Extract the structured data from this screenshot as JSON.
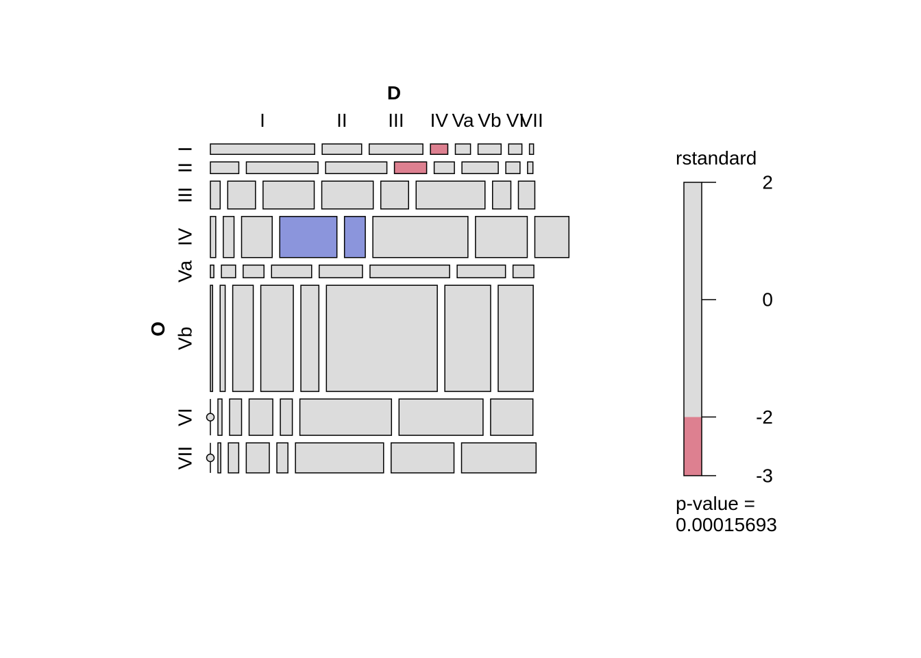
{
  "chart_data": {
    "type": "mosaic",
    "x_var": "D",
    "y_var": "O",
    "x_levels": [
      "I",
      "II",
      "III",
      "IV",
      "Va",
      "Vb",
      "VI",
      "VII"
    ],
    "y_levels": [
      "I",
      "II",
      "III",
      "IV",
      "Va",
      "Vb",
      "VI",
      "VII"
    ],
    "row_proportions": [
      0.033,
      0.037,
      0.088,
      0.13,
      0.04,
      0.336,
      0.115,
      0.095
    ],
    "cell_proportions": [
      [
        0.33,
        0.125,
        0.17,
        0.055,
        0.048,
        0.073,
        0.042,
        0.013
      ],
      [
        0.09,
        0.227,
        0.194,
        0.102,
        0.064,
        0.115,
        0.045,
        0.017
      ],
      [
        0.031,
        0.088,
        0.162,
        0.163,
        0.088,
        0.218,
        0.058,
        0.052
      ],
      [
        0.017,
        0.034,
        0.097,
        0.181,
        0.066,
        0.301,
        0.164,
        0.108
      ],
      [
        0.011,
        0.045,
        0.066,
        0.127,
        0.137,
        0.252,
        0.153,
        0.066
      ],
      [
        0.007,
        0.016,
        0.065,
        0.103,
        0.057,
        0.351,
        0.145,
        0.111
      ],
      [
        0.0,
        0.013,
        0.038,
        0.075,
        0.038,
        0.29,
        0.266,
        0.134
      ],
      [
        0.0,
        0.009,
        0.033,
        0.073,
        0.035,
        0.279,
        0.199,
        0.236
      ]
    ],
    "residual_colors": [
      [
        "none",
        "none",
        "none",
        "red",
        "none",
        "none",
        "none",
        "none"
      ],
      [
        "none",
        "none",
        "none",
        "red",
        "none",
        "none",
        "none",
        "none"
      ],
      [
        "none",
        "none",
        "none",
        "none",
        "none",
        "none",
        "none",
        "none"
      ],
      [
        "none",
        "none",
        "none",
        "blue",
        "blue",
        "none",
        "none",
        "none"
      ],
      [
        "none",
        "none",
        "none",
        "none",
        "none",
        "none",
        "none",
        "none"
      ],
      [
        "none",
        "none",
        "none",
        "none",
        "none",
        "none",
        "none",
        "none"
      ],
      [
        "none",
        "none",
        "none",
        "none",
        "none",
        "none",
        "none",
        "none"
      ],
      [
        "none",
        "none",
        "none",
        "none",
        "none",
        "none",
        "none",
        "none"
      ]
    ],
    "legend": {
      "title": "rstandard",
      "tick_labels": [
        "2",
        "0",
        "-2",
        "-3"
      ],
      "range": [
        -3,
        2
      ],
      "ticks": [
        2,
        0,
        -2,
        -3
      ],
      "pvalue_label": "p-value =",
      "pvalue": "0.00015693"
    }
  },
  "colors": {
    "neutral": "#dcdcdc",
    "positive": "#8b95dc",
    "negative": "#dd8090",
    "border": "#000000"
  }
}
